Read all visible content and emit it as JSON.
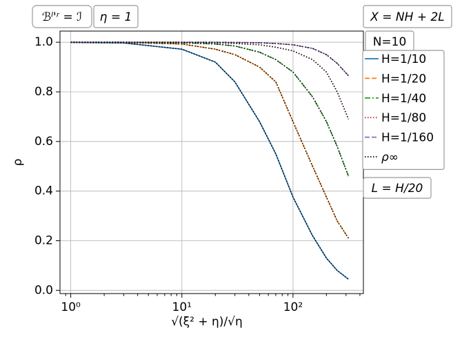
{
  "chart_data": {
    "type": "line",
    "x_label": "√(ξ² + η)/√η",
    "y_label": "ρ",
    "log_x": true,
    "grid": true,
    "annotations": [
      "ℬˡ'ʳ = ℐ",
      "η = 1",
      "X = NH + 2L",
      "N=10",
      "L = H/20"
    ],
    "x": [
      1,
      3,
      10,
      20,
      30,
      50,
      70,
      100,
      150,
      200,
      250,
      316
    ],
    "series": [
      {
        "name": "H=1/10",
        "color": "#1f77b4",
        "dash": "solid",
        "values": [
          0.999,
          0.997,
          0.972,
          0.92,
          0.84,
          0.68,
          0.55,
          0.376,
          0.22,
          0.13,
          0.08,
          0.045
        ]
      },
      {
        "name": "H=1/20",
        "color": "#ff7f0e",
        "dash": "dashed",
        "values": [
          1.0,
          0.999,
          0.993,
          0.972,
          0.95,
          0.9,
          0.84,
          0.68,
          0.5,
          0.376,
          0.28,
          0.21
        ]
      },
      {
        "name": "H=1/40",
        "color": "#2ca02c",
        "dash": "dashdot",
        "values": [
          1.0,
          1.0,
          0.998,
          0.993,
          0.985,
          0.96,
          0.93,
          0.88,
          0.78,
          0.68,
          0.58,
          0.46
        ]
      },
      {
        "name": "H=1/80",
        "color": "#d62728",
        "dash": "dotted",
        "values": [
          1.0,
          1.0,
          1.0,
          0.998,
          0.995,
          0.99,
          0.98,
          0.965,
          0.93,
          0.88,
          0.8,
          0.69
        ]
      },
      {
        "name": "H=1/160",
        "color": "#9467bd",
        "dash": "dashed",
        "values": [
          1.0,
          1.0,
          1.0,
          1.0,
          0.999,
          0.998,
          0.995,
          0.99,
          0.975,
          0.95,
          0.915,
          0.865
        ]
      },
      {
        "name": "ρ∞",
        "color": "#000000",
        "dash": "dotted",
        "overlay": true
      }
    ],
    "xlim": [
      0.8,
      430
    ],
    "ylim": [
      -0.013,
      1.045
    ],
    "xticks": [
      {
        "value": 1,
        "label": "10⁰"
      },
      {
        "value": 10,
        "label": "10¹"
      },
      {
        "value": 100,
        "label": "10²"
      }
    ],
    "yticks": [
      {
        "value": 0,
        "label": "0.0"
      },
      0.2,
      0.4,
      0.6,
      0.8,
      {
        "value": 1,
        "label": "1.0"
      }
    ]
  }
}
